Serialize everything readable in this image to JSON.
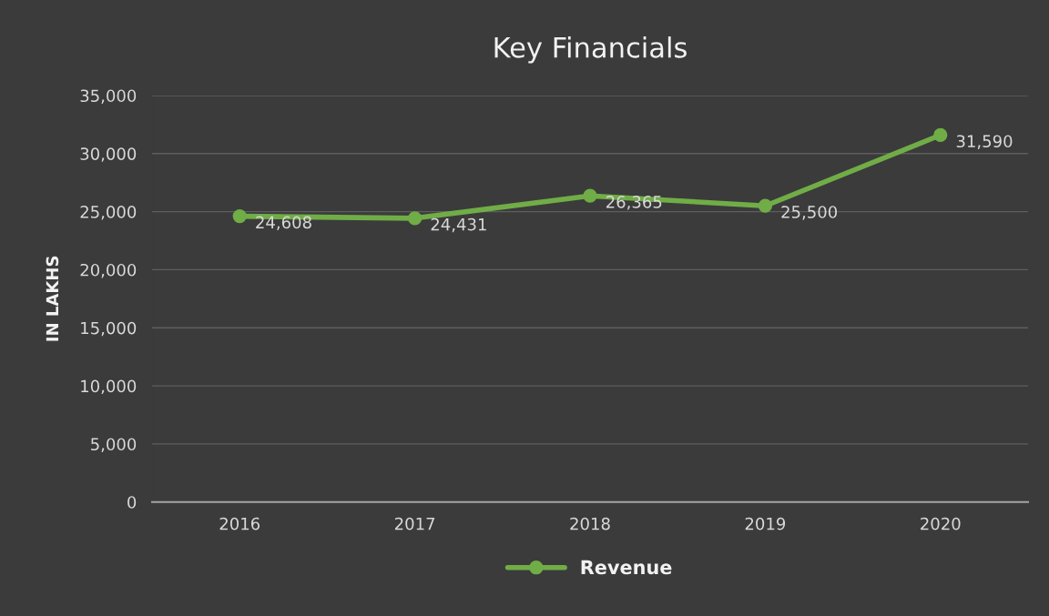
{
  "chart_data": {
    "type": "line",
    "title": "Key Financials",
    "ylabel": "IN LAKHS",
    "categories": [
      "2016",
      "2017",
      "2018",
      "2019",
      "2020"
    ],
    "series": [
      {
        "name": "Revenue",
        "color": "#70ad47",
        "values": [
          24608,
          24431,
          26365,
          25500,
          31590
        ]
      }
    ],
    "ylim": [
      0,
      35000
    ],
    "yticks": [
      {
        "value": 0,
        "label": "0"
      },
      {
        "value": 5000,
        "label": "5,000"
      },
      {
        "value": 10000,
        "label": "10,000"
      },
      {
        "value": 15000,
        "label": "15,000"
      },
      {
        "value": 20000,
        "label": "20,000"
      },
      {
        "value": 25000,
        "label": "25,000"
      },
      {
        "value": 30000,
        "label": "30,000"
      },
      {
        "value": 35000,
        "label": "35,000"
      }
    ],
    "grid": "y",
    "legend": "bottom",
    "marker": "circle",
    "line_style": "solid",
    "value_labels": [
      "24,608",
      "24,431",
      "26,365",
      "25,500",
      "31,590"
    ]
  }
}
